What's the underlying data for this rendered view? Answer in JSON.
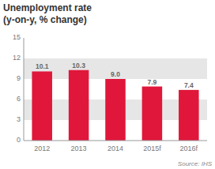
{
  "chart_data": {
    "type": "bar",
    "title": "Unemployment rate",
    "subtitle": "(y-on-y, % change)",
    "categories": [
      "2012",
      "2013",
      "2014",
      "2015f",
      "2016f"
    ],
    "values": [
      10.1,
      10.3,
      9.0,
      7.9,
      7.4
    ],
    "value_labels": [
      "10.1",
      "10.3",
      "9.0",
      "7.9",
      "7.4"
    ],
    "data_labels": true,
    "color": "#e0173a",
    "ylim": [
      0,
      15
    ],
    "yticks": [
      0,
      3,
      6,
      9,
      12,
      15
    ],
    "grid": true,
    "annotations": [
      "Source: IHS"
    ]
  }
}
